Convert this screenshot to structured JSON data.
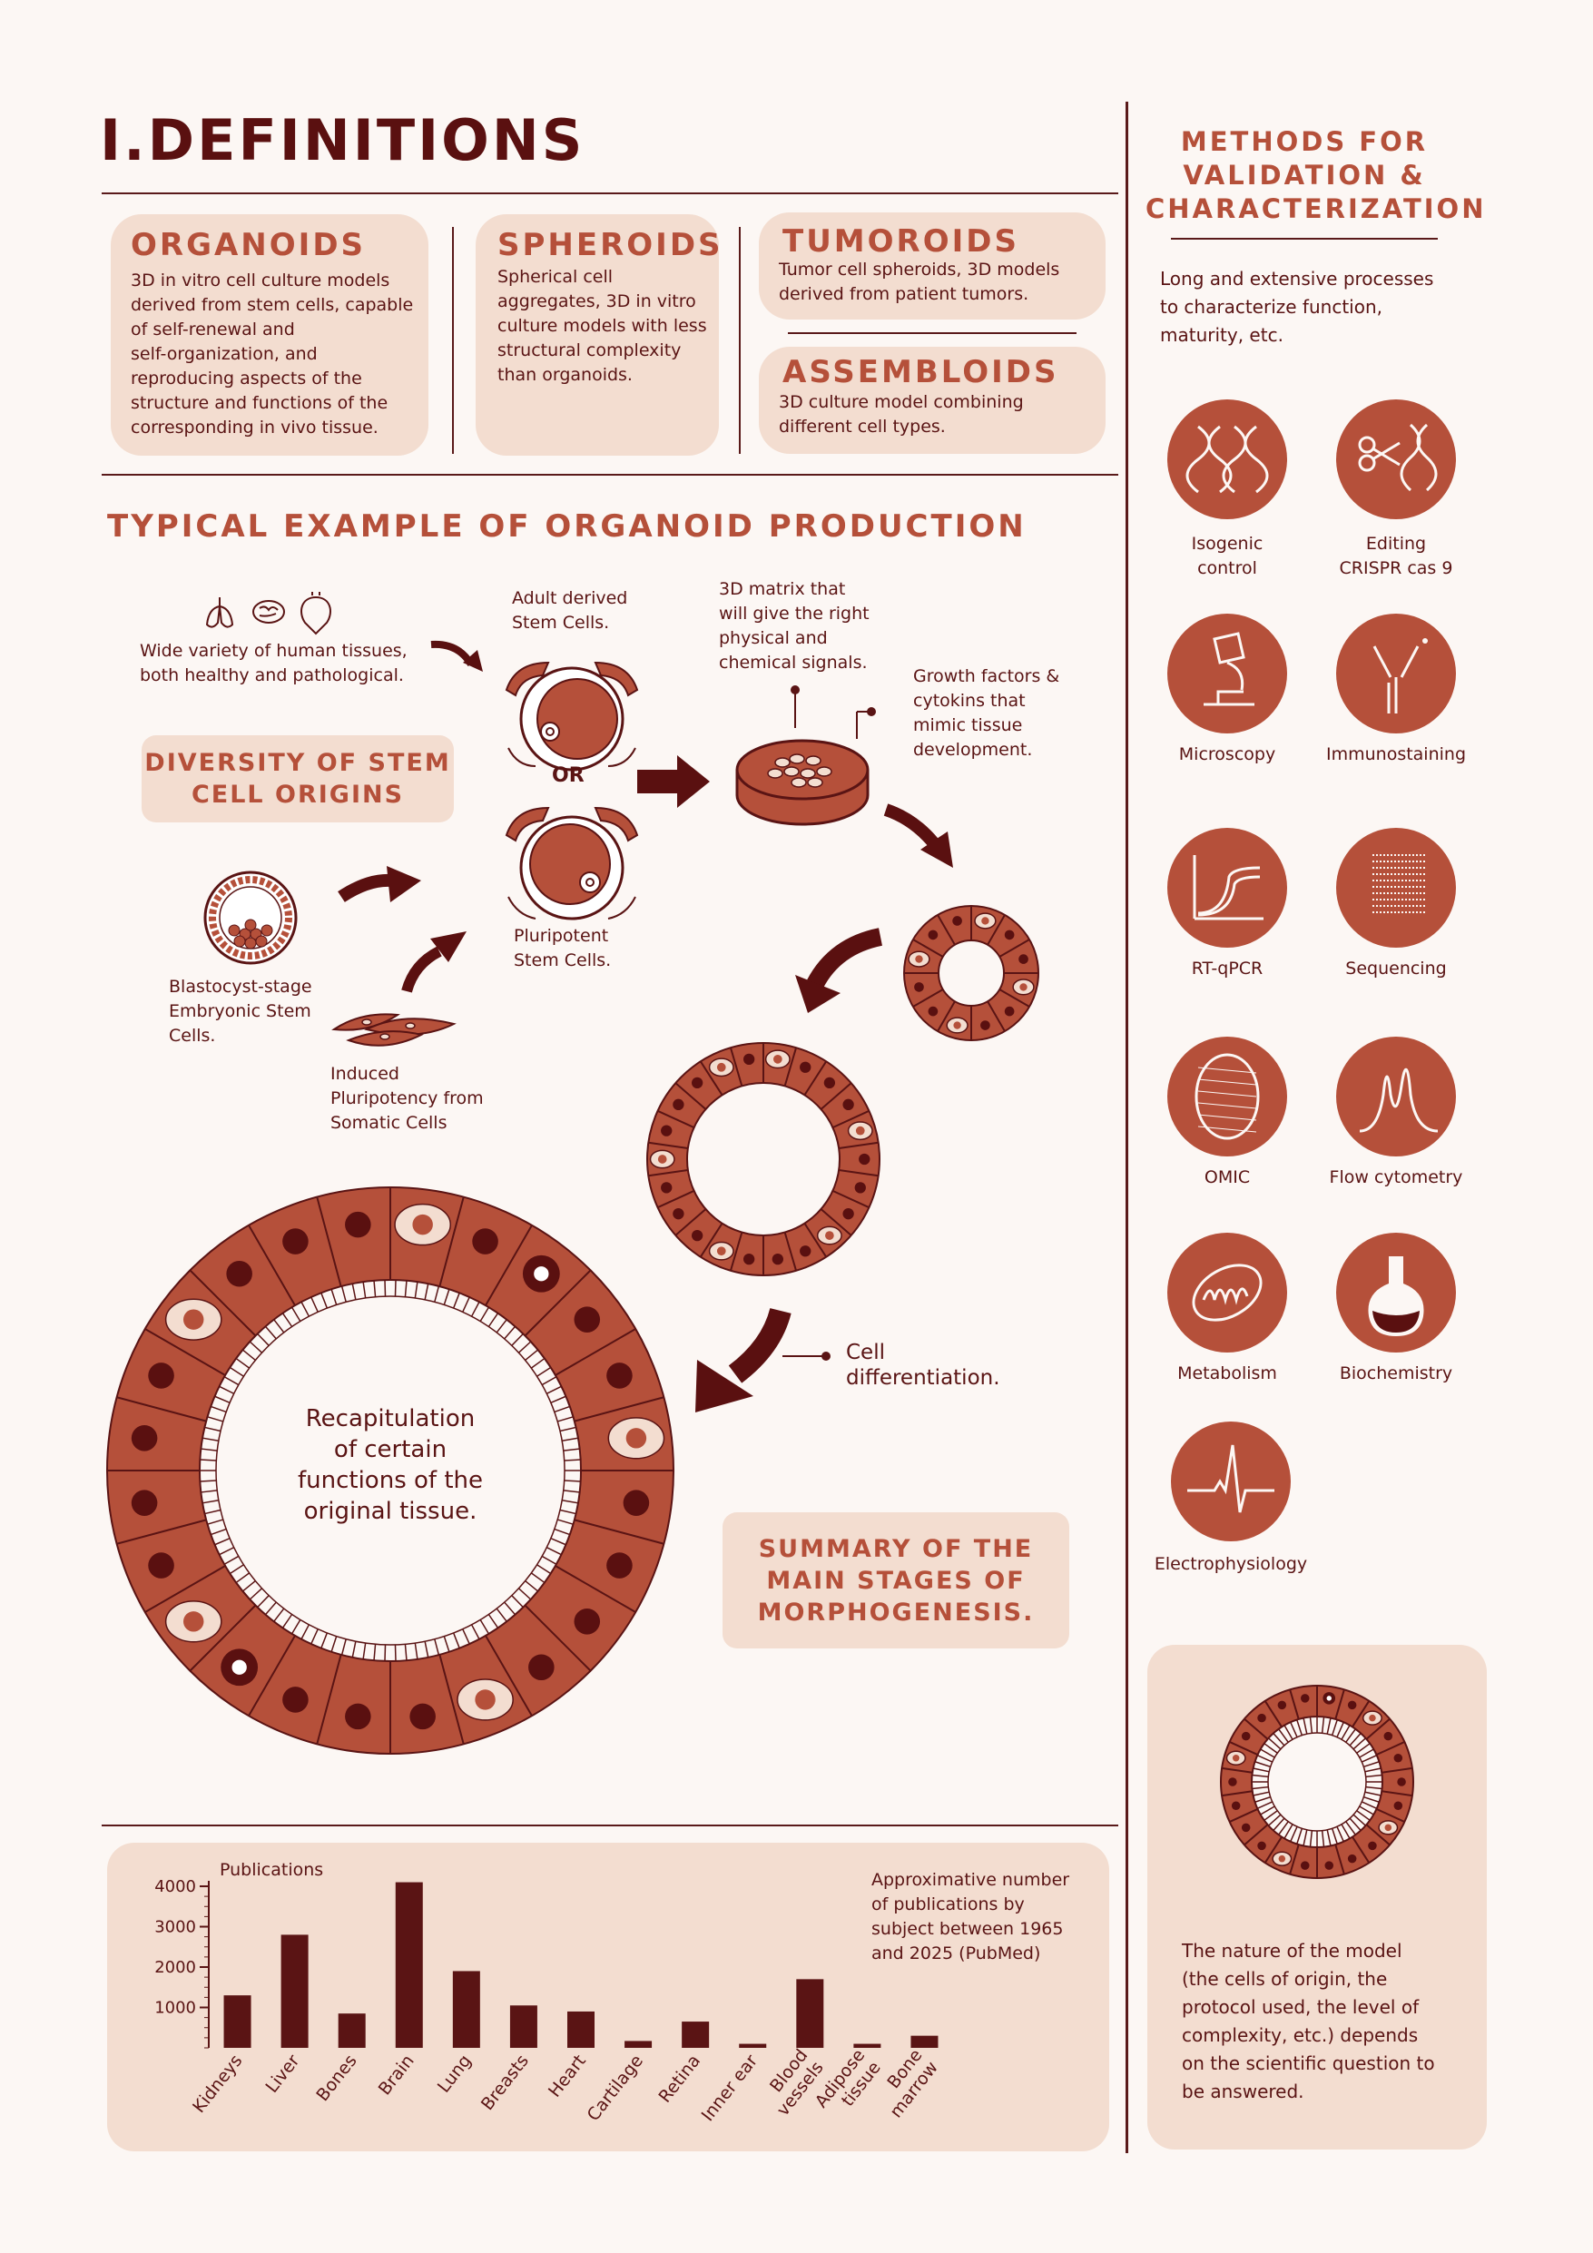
{
  "header": {
    "title": "I.DEFINITIONS"
  },
  "definitions": [
    {
      "title": "ORGANOIDS",
      "lines": [
        "3D in vitro cell culture models",
        "derived from stem cells, capable",
        "of self-renewal and",
        "self-organization, and",
        "reproducing aspects of the",
        "structure and functions of the",
        "corresponding in vivo tissue."
      ]
    },
    {
      "title": "SPHEROIDS",
      "lines": [
        "Spherical cell",
        "aggregates, 3D in vitro",
        "culture models with less",
        "structural complexity",
        "than organoids."
      ]
    },
    {
      "title": "TUMOROIDS",
      "lines": [
        "Tumor cell spheroids, 3D models",
        "derived from patient tumors."
      ]
    },
    {
      "title": "ASSEMBLOIDS",
      "lines": [
        "3D culture model combining",
        "different cell types."
      ]
    }
  ],
  "production": {
    "title": "TYPICAL EXAMPLE OF ORGANOID PRODUCTION",
    "tissues_text": [
      "Wide variety of human tissues,",
      "both healthy and pathological."
    ],
    "adult_stem": [
      "Adult derived",
      "Stem Cells."
    ],
    "or_label": "OR",
    "pluripotent": [
      "Pluripotent",
      "Stem Cells."
    ],
    "matrix": [
      "3D matrix that",
      "will give the right",
      "physical and",
      "chemical signals."
    ],
    "growth": [
      "Growth factors &",
      "cytokins that",
      "mimic tissue",
      "development."
    ],
    "diversity_pill": [
      "DIVERSITY OF STEM",
      "CELL ORIGINS"
    ],
    "blastocyst": [
      "Blastocyst-stage",
      "Embryonic Stem",
      "Cells."
    ],
    "induced": [
      "Induced",
      "Pluripotency from",
      "Somatic Cells"
    ],
    "differentiation": [
      "Cell",
      "differentiation."
    ],
    "recap": [
      "Recapitulation",
      "of certain",
      "functions of the",
      "original tissue."
    ],
    "summary_pill": [
      "SUMMARY OF THE",
      "MAIN STAGES OF",
      "MORPHOGENESIS."
    ]
  },
  "methods": {
    "title": [
      "METHODS FOR",
      "VALIDATION &",
      "CHARACTERIZATION"
    ],
    "intro": [
      "Long and extensive processes",
      "to characterize function,",
      "maturity, etc."
    ],
    "items": [
      {
        "label": [
          "Isogenic",
          "control"
        ],
        "icon": "dna-icon"
      },
      {
        "label": [
          "Editing",
          "CRISPR cas 9"
        ],
        "icon": "scissors-dna-icon"
      },
      {
        "label": [
          "Microscopy"
        ],
        "icon": "microscope-icon"
      },
      {
        "label": [
          "Immunostaining"
        ],
        "icon": "antibody-icon"
      },
      {
        "label": [
          "RT-qPCR"
        ],
        "icon": "curve-graph-icon"
      },
      {
        "label": [
          "Sequencing"
        ],
        "icon": "sequencing-icon"
      },
      {
        "label": [
          "OMIC"
        ],
        "icon": "omic-icon"
      },
      {
        "label": [
          "Flow cytometry"
        ],
        "icon": "peaks-icon"
      },
      {
        "label": [
          "Metabolism"
        ],
        "icon": "mitochondria-icon"
      },
      {
        "label": [
          "Biochemistry"
        ],
        "icon": "flask-icon"
      },
      {
        "label": [
          "Electrophysiology"
        ],
        "icon": "ecg-icon"
      }
    ],
    "note": [
      "The nature of the model",
      "(the cells of origin, the",
      "protocol used, the level of",
      "complexity, etc.) depends",
      "on the scientific question to",
      "be answered."
    ]
  },
  "chart_data": {
    "type": "bar",
    "ylabel": "Publications",
    "ylim": [
      0,
      4000
    ],
    "yticks": [
      1000,
      2000,
      3000,
      4000
    ],
    "categories": [
      "Kidneys",
      "Liver",
      "Bones",
      "Brain",
      "Lung",
      "Breasts",
      "Heart",
      "Cartilage",
      "Retina",
      "Inner ear",
      "Blood vessels",
      "Adipose tissue",
      "Bone marrow"
    ],
    "values": [
      1300,
      2800,
      850,
      4100,
      1900,
      1050,
      900,
      170,
      650,
      100,
      1700,
      100,
      300
    ],
    "note": [
      "Approximative number",
      "of publications by",
      "subject between 1965",
      "and 2025 (PubMed)"
    ],
    "color": "#5a1414"
  }
}
